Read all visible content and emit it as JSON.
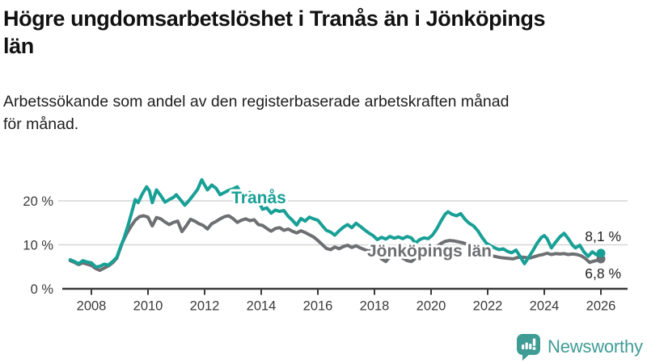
{
  "header": {
    "title_lines": [
      "Högre ungdomsarbetslöshet i Tranås än i Jönköpings",
      "län"
    ],
    "subtitle_lines": [
      "Arbetssökande som andel av den registerbaserade arbetskraften månad",
      "för månad."
    ]
  },
  "footer": {
    "brand_name": "Newsworthy",
    "brand_color": "#3f9c95",
    "logo_icon": "bar-chart-speech-bubble-icon"
  },
  "chart_data": {
    "type": "line",
    "title": "Högre ungdomsarbetslöshet i Tranås än i Jönköpings län",
    "subtitle": "Arbetssökande som andel av den registerbaserade arbetskraften månad för månad.",
    "unit": "%",
    "grid": "horizontal-light",
    "legend_position": "inline-labels-on-lines",
    "x_axis": {
      "ticks": [
        2008,
        2010,
        2012,
        2014,
        2016,
        2018,
        2020,
        2022,
        2024,
        2026
      ],
      "range": [
        2007.1,
        2026.9
      ]
    },
    "y_axis": {
      "ticks": [
        {
          "value": 0,
          "label": "0 %"
        },
        {
          "value": 10,
          "label": "10 %"
        },
        {
          "value": 20,
          "label": "20 %"
        }
      ],
      "range": [
        0,
        26
      ]
    },
    "series": [
      {
        "name": "Jönköpings län",
        "color": "#6d6f72",
        "end_label": "6,8 %",
        "end_value": 6.8,
        "points": [
          [
            2007.25,
            6.4
          ],
          [
            2007.4,
            6
          ],
          [
            2007.55,
            5.5
          ],
          [
            2007.7,
            5.9
          ],
          [
            2007.85,
            5.6
          ],
          [
            2008,
            5.3
          ],
          [
            2008.15,
            4.6
          ],
          [
            2008.3,
            4.2
          ],
          [
            2008.45,
            4.7
          ],
          [
            2008.6,
            5.2
          ],
          [
            2008.75,
            5.9
          ],
          [
            2008.9,
            7
          ],
          [
            2009,
            8.8
          ],
          [
            2009.1,
            10.6
          ],
          [
            2009.25,
            12.6
          ],
          [
            2009.4,
            14.2
          ],
          [
            2009.55,
            15.6
          ],
          [
            2009.7,
            16.4
          ],
          [
            2009.85,
            16.6
          ],
          [
            2010,
            16.3
          ],
          [
            2010.15,
            14.3
          ],
          [
            2010.3,
            16.2
          ],
          [
            2010.45,
            15.9
          ],
          [
            2010.6,
            15.2
          ],
          [
            2010.75,
            14.6
          ],
          [
            2010.9,
            15.1
          ],
          [
            2011.05,
            15.4
          ],
          [
            2011.2,
            13
          ],
          [
            2011.35,
            14.3
          ],
          [
            2011.5,
            15.8
          ],
          [
            2011.65,
            15.4
          ],
          [
            2011.8,
            14.8
          ],
          [
            2011.95,
            14.4
          ],
          [
            2012.1,
            13.6
          ],
          [
            2012.25,
            14.8
          ],
          [
            2012.4,
            15.3
          ],
          [
            2012.55,
            15.9
          ],
          [
            2012.7,
            16.4
          ],
          [
            2012.85,
            16.6
          ],
          [
            2013,
            16
          ],
          [
            2013.15,
            15.1
          ],
          [
            2013.3,
            15.6
          ],
          [
            2013.45,
            15.9
          ],
          [
            2013.6,
            15.5
          ],
          [
            2013.75,
            15.7
          ],
          [
            2013.9,
            14.6
          ],
          [
            2014.05,
            14.4
          ],
          [
            2014.2,
            13.7
          ],
          [
            2014.35,
            13.1
          ],
          [
            2014.5,
            13.7
          ],
          [
            2014.65,
            13.9
          ],
          [
            2014.8,
            13.3
          ],
          [
            2014.95,
            13.6
          ],
          [
            2015.1,
            13.1
          ],
          [
            2015.25,
            12.7
          ],
          [
            2015.4,
            13.2
          ],
          [
            2015.55,
            12.8
          ],
          [
            2015.7,
            12.3
          ],
          [
            2015.85,
            11.8
          ],
          [
            2016,
            11
          ],
          [
            2016.15,
            10.1
          ],
          [
            2016.3,
            9.2
          ],
          [
            2016.45,
            8.9
          ],
          [
            2016.6,
            9.5
          ],
          [
            2016.75,
            9.1
          ],
          [
            2016.9,
            9.6
          ],
          [
            2017.05,
            9.9
          ],
          [
            2017.2,
            9.4
          ],
          [
            2017.35,
            9.8
          ],
          [
            2017.5,
            9.3
          ],
          [
            2017.65,
            8.9
          ],
          [
            2017.8,
            8.6
          ],
          [
            2017.95,
            8.9
          ],
          [
            2018.1,
            8
          ],
          [
            2018.25,
            6.8
          ],
          [
            2018.4,
            6.2
          ],
          [
            2018.55,
            7.3
          ],
          [
            2018.7,
            7.9
          ],
          [
            2018.85,
            7.4
          ],
          [
            2019,
            7
          ],
          [
            2019.15,
            6.4
          ],
          [
            2019.3,
            6.2
          ],
          [
            2019.45,
            6.9
          ],
          [
            2019.6,
            7.6
          ],
          [
            2019.75,
            7.9
          ],
          [
            2019.9,
            8.2
          ],
          [
            2020.05,
            8.8
          ],
          [
            2020.2,
            9.6
          ],
          [
            2020.35,
            10.3
          ],
          [
            2020.5,
            10.8
          ],
          [
            2020.65,
            11
          ],
          [
            2020.8,
            10.9
          ],
          [
            2020.95,
            10.7
          ],
          [
            2021.1,
            10.5
          ],
          [
            2021.25,
            10.2
          ],
          [
            2021.4,
            9.7
          ],
          [
            2021.55,
            9.2
          ],
          [
            2021.7,
            8.7
          ],
          [
            2021.85,
            8.2
          ],
          [
            2022,
            7.9
          ],
          [
            2022.15,
            7.5
          ],
          [
            2022.3,
            7.3
          ],
          [
            2022.45,
            7.1
          ],
          [
            2022.6,
            7
          ],
          [
            2022.75,
            6.9
          ],
          [
            2022.9,
            6.8
          ],
          [
            2023.05,
            7.1
          ],
          [
            2023.2,
            7.2
          ],
          [
            2023.35,
            7.1
          ],
          [
            2023.5,
            7
          ],
          [
            2023.65,
            7.3
          ],
          [
            2023.8,
            7.6
          ],
          [
            2023.95,
            7.8
          ],
          [
            2024.1,
            8.1
          ],
          [
            2024.25,
            7.8
          ],
          [
            2024.4,
            8
          ],
          [
            2024.55,
            7.9
          ],
          [
            2024.7,
            8
          ],
          [
            2024.85,
            7.8
          ],
          [
            2025,
            7.9
          ],
          [
            2025.15,
            7.8
          ],
          [
            2025.3,
            7.5
          ],
          [
            2025.45,
            6.9
          ],
          [
            2025.6,
            6
          ],
          [
            2025.75,
            6.3
          ],
          [
            2025.9,
            6.5
          ],
          [
            2026,
            6.8
          ]
        ]
      },
      {
        "name": "Tranås",
        "color": "#18a096",
        "end_label": "8,1 %",
        "end_value": 8.1,
        "points": [
          [
            2007.25,
            6.6
          ],
          [
            2007.4,
            6.2
          ],
          [
            2007.55,
            5.7
          ],
          [
            2007.7,
            6.4
          ],
          [
            2007.85,
            6.1
          ],
          [
            2008,
            5.9
          ],
          [
            2008.15,
            5
          ],
          [
            2008.3,
            5.1
          ],
          [
            2008.45,
            5.6
          ],
          [
            2008.6,
            5.4
          ],
          [
            2008.75,
            6.2
          ],
          [
            2008.9,
            7.2
          ],
          [
            2009,
            9
          ],
          [
            2009.15,
            11.5
          ],
          [
            2009.3,
            14.5
          ],
          [
            2009.45,
            18
          ],
          [
            2009.55,
            20.3
          ],
          [
            2009.65,
            19.6
          ],
          [
            2009.8,
            21.6
          ],
          [
            2009.95,
            23.2
          ],
          [
            2010.05,
            22.3
          ],
          [
            2010.15,
            19.6
          ],
          [
            2010.3,
            22.5
          ],
          [
            2010.45,
            21.2
          ],
          [
            2010.6,
            19.7
          ],
          [
            2010.75,
            20.3
          ],
          [
            2010.9,
            20.8
          ],
          [
            2011,
            21.4
          ],
          [
            2011.15,
            20.2
          ],
          [
            2011.3,
            19
          ],
          [
            2011.45,
            20.1
          ],
          [
            2011.6,
            21.3
          ],
          [
            2011.75,
            22.6
          ],
          [
            2011.9,
            24.8
          ],
          [
            2012,
            23.6
          ],
          [
            2012.1,
            22.5
          ],
          [
            2012.25,
            23.6
          ],
          [
            2012.4,
            22.9
          ],
          [
            2012.55,
            21.4
          ],
          [
            2012.7,
            21.9
          ],
          [
            2012.85,
            22.4
          ],
          [
            2013,
            22.7
          ],
          [
            2013.15,
            23.2
          ],
          [
            2013.3,
            21.6
          ],
          [
            2013.45,
            20.8
          ],
          [
            2013.6,
            21.9
          ],
          [
            2013.75,
            21.3
          ],
          [
            2013.9,
            19.9
          ],
          [
            2014.05,
            18.1
          ],
          [
            2014.2,
            18.4
          ],
          [
            2014.35,
            17.2
          ],
          [
            2014.5,
            17.9
          ],
          [
            2014.65,
            17.6
          ],
          [
            2014.8,
            17.8
          ],
          [
            2014.95,
            16.5
          ],
          [
            2015.1,
            15.6
          ],
          [
            2015.25,
            14.5
          ],
          [
            2015.4,
            16
          ],
          [
            2015.55,
            15.4
          ],
          [
            2015.7,
            16.3
          ],
          [
            2015.85,
            15.9
          ],
          [
            2016,
            15.6
          ],
          [
            2016.15,
            14.4
          ],
          [
            2016.3,
            13.3
          ],
          [
            2016.45,
            12.9
          ],
          [
            2016.6,
            12.2
          ],
          [
            2016.75,
            13.2
          ],
          [
            2016.9,
            14
          ],
          [
            2017.05,
            14.6
          ],
          [
            2017.2,
            13.9
          ],
          [
            2017.35,
            14.9
          ],
          [
            2017.5,
            14.2
          ],
          [
            2017.65,
            13.4
          ],
          [
            2017.8,
            12.7
          ],
          [
            2017.95,
            12.1
          ],
          [
            2018.1,
            11.2
          ],
          [
            2018.25,
            11.7
          ],
          [
            2018.4,
            11.3
          ],
          [
            2018.55,
            11.9
          ],
          [
            2018.7,
            11.5
          ],
          [
            2018.85,
            11.8
          ],
          [
            2019,
            11.4
          ],
          [
            2019.15,
            11.9
          ],
          [
            2019.3,
            11.6
          ],
          [
            2019.45,
            10.4
          ],
          [
            2019.6,
            11.2
          ],
          [
            2019.75,
            11.6
          ],
          [
            2019.9,
            11.4
          ],
          [
            2020.05,
            12.2
          ],
          [
            2020.2,
            13.6
          ],
          [
            2020.35,
            15.4
          ],
          [
            2020.5,
            17
          ],
          [
            2020.6,
            17.5
          ],
          [
            2020.75,
            16.9
          ],
          [
            2020.9,
            16.6
          ],
          [
            2021.05,
            17.1
          ],
          [
            2021.2,
            15.8
          ],
          [
            2021.35,
            14.9
          ],
          [
            2021.5,
            14.3
          ],
          [
            2021.65,
            13.2
          ],
          [
            2021.8,
            11.7
          ],
          [
            2021.95,
            10.4
          ],
          [
            2022.1,
            9.8
          ],
          [
            2022.25,
            9.3
          ],
          [
            2022.4,
            8.9
          ],
          [
            2022.55,
            9.1
          ],
          [
            2022.7,
            8.5
          ],
          [
            2022.85,
            8.2
          ],
          [
            2023,
            8.8
          ],
          [
            2023.15,
            7.3
          ],
          [
            2023.3,
            5.7
          ],
          [
            2023.45,
            7.2
          ],
          [
            2023.6,
            8.7
          ],
          [
            2023.75,
            10.4
          ],
          [
            2023.9,
            11.7
          ],
          [
            2024,
            12.1
          ],
          [
            2024.1,
            11.4
          ],
          [
            2024.25,
            9.3
          ],
          [
            2024.4,
            10.6
          ],
          [
            2024.55,
            11.8
          ],
          [
            2024.7,
            12.6
          ],
          [
            2024.85,
            11.4
          ],
          [
            2025,
            9.9
          ],
          [
            2025.1,
            9.3
          ],
          [
            2025.25,
            9.9
          ],
          [
            2025.4,
            8.4
          ],
          [
            2025.55,
            7.4
          ],
          [
            2025.7,
            8.4
          ],
          [
            2025.85,
            7.7
          ],
          [
            2026,
            8.1
          ]
        ]
      }
    ]
  }
}
